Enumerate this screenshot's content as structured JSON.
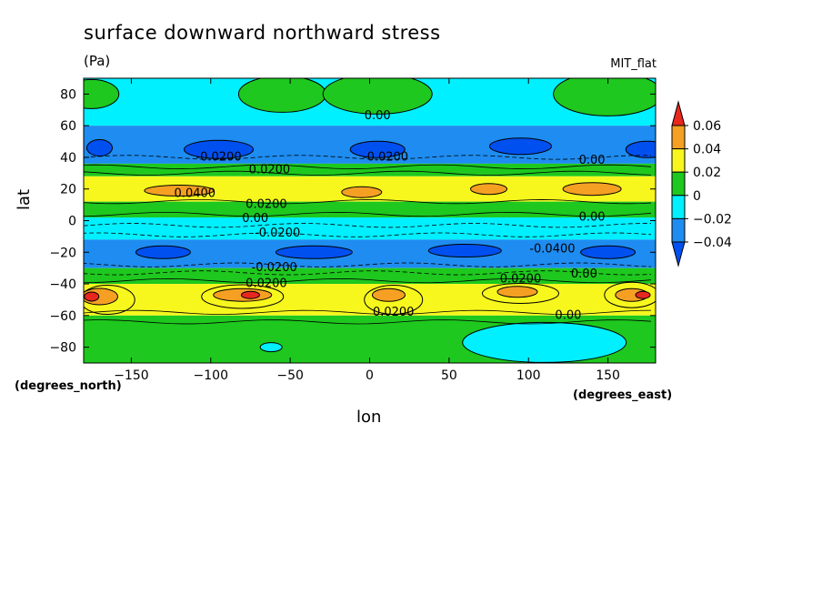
{
  "title": "surface downward northward stress",
  "units": "(Pa)",
  "dataset": "MIT_flat",
  "x_unit_note": "(degrees_east)",
  "y_unit_note": "(degrees_north)",
  "chart_data": {
    "type": "heatmap",
    "title": "surface downward northward stress",
    "xlabel": "lon",
    "ylabel": "lat",
    "xlim": [
      -180,
      180
    ],
    "ylim": [
      -90,
      90
    ],
    "x_ticks": [
      -150,
      -100,
      -50,
      0,
      50,
      100,
      150
    ],
    "y_ticks": [
      80,
      60,
      40,
      20,
      0,
      -20,
      -40,
      -60,
      -80
    ],
    "colorbar": {
      "levels": [
        0.06,
        0.04,
        0.02,
        0,
        -0.02,
        -0.04
      ],
      "labels": [
        "0.06",
        "0.04",
        "0.02",
        "0",
        "-0.02",
        "-0.04"
      ],
      "colors": [
        "#e8281e",
        "#f5a023",
        "#f7f71e",
        "#1ec81e",
        "#00f0ff",
        "#1e8cf0",
        "#0050f0"
      ]
    },
    "zonal_bands": [
      {
        "lat_range": [
          90,
          60
        ],
        "value": -0.01
      },
      {
        "lat_range": [
          60,
          36
        ],
        "value": -0.03
      },
      {
        "lat_range": [
          36,
          28
        ],
        "value": 0.01
      },
      {
        "lat_range": [
          28,
          12
        ],
        "value": 0.03
      },
      {
        "lat_range": [
          12,
          2
        ],
        "value": 0.01
      },
      {
        "lat_range": [
          2,
          -12
        ],
        "value": -0.01
      },
      {
        "lat_range": [
          -12,
          -30
        ],
        "value": -0.03
      },
      {
        "lat_range": [
          -30,
          -40
        ],
        "value": 0.01
      },
      {
        "lat_range": [
          -40,
          -60
        ],
        "value": 0.03
      },
      {
        "lat_range": [
          -60,
          -90
        ],
        "value": 0.01
      }
    ],
    "contour_labels": [
      {
        "text": "0.00",
        "lon": 5,
        "lat": 64
      },
      {
        "text": "-0.0200",
        "lon": -95,
        "lat": 38
      },
      {
        "text": "0.0200",
        "lon": -63,
        "lat": 30
      },
      {
        "text": "-0.0200",
        "lon": 10,
        "lat": 38
      },
      {
        "text": "0.00",
        "lon": 140,
        "lat": 36
      },
      {
        "text": "0.0400",
        "lon": -110,
        "lat": 15
      },
      {
        "text": "0.0200",
        "lon": -65,
        "lat": 8
      },
      {
        "text": "0.00",
        "lon": -72,
        "lat": -1
      },
      {
        "text": "-0.0200",
        "lon": -58,
        "lat": -10
      },
      {
        "text": "0.00",
        "lon": 140,
        "lat": 0
      },
      {
        "text": "-0.0400",
        "lon": 115,
        "lat": -20
      },
      {
        "text": "-0.0200",
        "lon": -60,
        "lat": -32
      },
      {
        "text": "0.0200",
        "lon": -65,
        "lat": -42
      },
      {
        "text": "0.0200",
        "lon": 95,
        "lat": -39
      },
      {
        "text": "0.00",
        "lon": 135,
        "lat": -36
      },
      {
        "text": "0.0200",
        "lon": 15,
        "lat": -60
      },
      {
        "text": "0.00",
        "lon": 125,
        "lat": -62
      }
    ]
  }
}
